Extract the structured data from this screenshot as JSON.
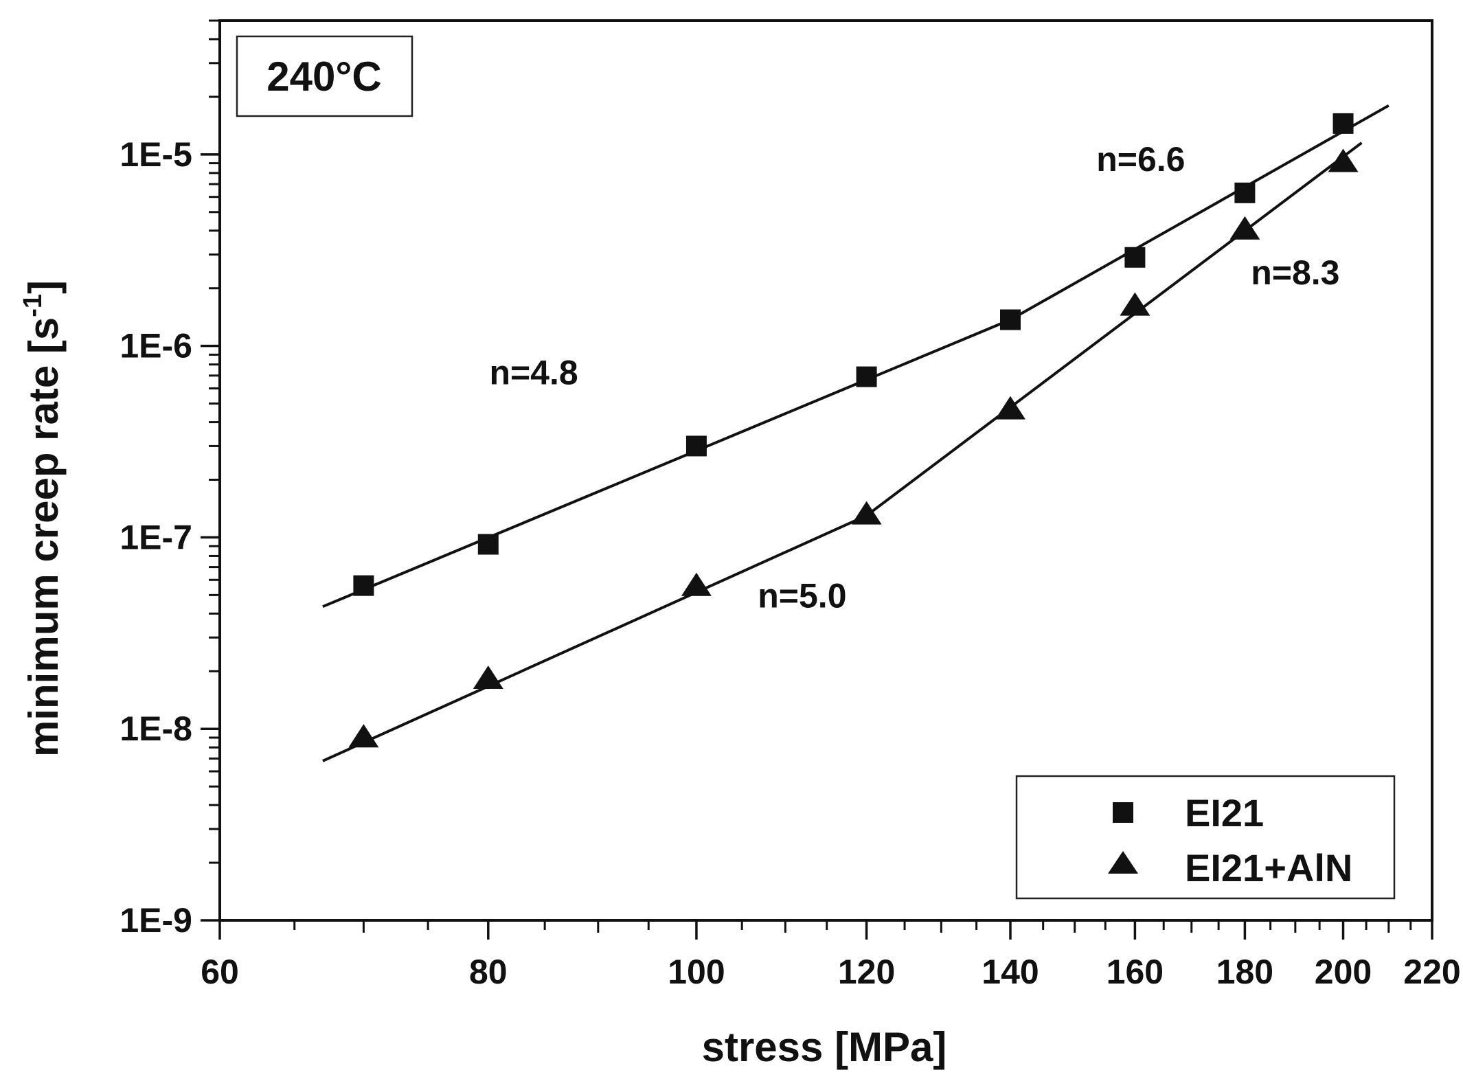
{
  "chart_data": {
    "type": "scatter",
    "title": "",
    "temperature_label": "240°C",
    "xlabel": "stress [MPa]",
    "ylabel_main": "minimum creep rate [s",
    "ylabel_sup": "-1",
    "ylabel_close": "]",
    "xscale": "log",
    "yscale": "log",
    "xlim": [
      60,
      220
    ],
    "ylim": [
      1e-09,
      5e-05
    ],
    "xticks": [
      60,
      80,
      100,
      120,
      140,
      160,
      180,
      200,
      220
    ],
    "xtick_labels": [
      "60",
      "80",
      "100",
      "120",
      "140",
      "160",
      "180",
      "200",
      "220"
    ],
    "yticks": [
      1e-09,
      1e-08,
      1e-07,
      1e-06,
      1e-05
    ],
    "ytick_labels": [
      "1E-9",
      "1E-8",
      "1E-7",
      "1E-6",
      "1E-5"
    ],
    "legend_position": "bottom-right",
    "series": [
      {
        "name": "EI21",
        "marker": "square",
        "x": [
          70,
          80,
          100,
          120,
          140,
          160,
          180,
          200
        ],
        "y": [
          5.6e-08,
          9.2e-08,
          3e-07,
          6.9e-07,
          1.37e-06,
          2.9e-06,
          6.3e-06,
          1.45e-05
        ],
        "fit_segments": [
          {
            "x": [
              67,
              140
            ],
            "y": [
              4.35e-08,
              1.37e-06
            ]
          },
          {
            "x": [
              140,
              210
            ],
            "y": [
              1.37e-06,
              1.8e-05
            ]
          }
        ]
      },
      {
        "name": "EI21+AlN",
        "marker": "triangle",
        "x": [
          70,
          80,
          100,
          120,
          140,
          160,
          180,
          200
        ],
        "y": [
          8.9e-09,
          1.8e-08,
          5.5e-08,
          1.3e-07,
          4.6e-07,
          1.6e-06,
          4e-06,
          9e-06
        ],
        "fit_segments": [
          {
            "x": [
              67,
              120
            ],
            "y": [
              6.8e-09,
              1.3e-07
            ]
          },
          {
            "x": [
              120,
              204
            ],
            "y": [
              1.3e-07,
              1.15e-05
            ]
          }
        ]
      }
    ],
    "legend_labels": [
      "EI21",
      "EI21+AlN"
    ],
    "annotations": [
      {
        "text": "n=4.8",
        "x": 84,
        "y": 6.3e-07
      },
      {
        "text": "n=5.0",
        "x": 112,
        "y": 4.3e-08
      },
      {
        "text": "n=6.6",
        "x": 161,
        "y": 8.2e-06
      },
      {
        "text": "n=8.3",
        "x": 190,
        "y": 2.1e-06
      }
    ]
  }
}
